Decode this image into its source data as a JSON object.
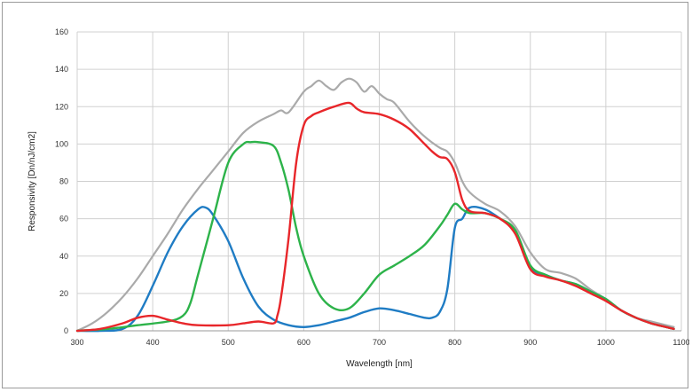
{
  "chart_data": {
    "type": "line",
    "title": "",
    "xlabel": "Wavelength [nm]",
    "ylabel": "Responsivity [Dn/nJ/cm2]",
    "xlim": [
      300,
      1100
    ],
    "ylim": [
      0,
      160
    ],
    "xticks": [
      300,
      400,
      500,
      600,
      700,
      800,
      900,
      1000,
      1100
    ],
    "yticks": [
      0,
      20,
      40,
      60,
      80,
      100,
      120,
      140,
      160
    ],
    "grid": true,
    "legend": "none",
    "series": [
      {
        "color": "#aaaaaa",
        "x": [
          300,
          320,
          340,
          360,
          380,
          400,
          420,
          440,
          460,
          480,
          500,
          520,
          540,
          560,
          570,
          580,
          600,
          610,
          620,
          630,
          640,
          650,
          660,
          670,
          680,
          690,
          700,
          710,
          720,
          740,
          760,
          780,
          790,
          800,
          810,
          820,
          840,
          860,
          880,
          900,
          920,
          940,
          960,
          980,
          1000,
          1020,
          1040,
          1060,
          1080,
          1090
        ],
        "values": [
          0,
          4,
          10,
          18,
          28,
          40,
          52,
          65,
          76,
          86,
          96,
          106,
          112,
          116,
          118,
          117,
          128,
          131,
          134,
          131,
          129,
          133,
          135,
          133,
          128,
          131,
          127,
          124,
          122,
          112,
          104,
          98,
          96,
          90,
          80,
          74,
          68,
          64,
          56,
          42,
          33,
          31,
          28,
          22,
          17,
          11,
          7,
          5,
          3,
          2
        ]
      },
      {
        "color": "#1f7cc4",
        "x": [
          300,
          330,
          360,
          380,
          400,
          420,
          440,
          460,
          470,
          480,
          500,
          520,
          540,
          560,
          580,
          600,
          620,
          640,
          660,
          680,
          700,
          720,
          740,
          760,
          770,
          780,
          790,
          800,
          810,
          820,
          840,
          860,
          880,
          900,
          920,
          940,
          960,
          980,
          1000,
          1020,
          1040,
          1060,
          1080,
          1090
        ],
        "values": [
          0,
          0,
          1,
          8,
          24,
          42,
          56,
          65,
          66,
          62,
          48,
          28,
          13,
          6,
          3,
          2,
          3,
          5,
          7,
          10,
          12,
          11,
          9,
          7,
          7,
          10,
          22,
          55,
          60,
          66,
          65,
          60,
          53,
          34,
          30,
          27,
          25,
          21,
          17,
          11,
          7,
          4,
          2,
          1
        ]
      },
      {
        "color": "#2db34a",
        "x": [
          300,
          340,
          380,
          420,
          440,
          450,
          460,
          480,
          500,
          520,
          530,
          540,
          560,
          570,
          580,
          590,
          600,
          620,
          640,
          660,
          680,
          700,
          720,
          740,
          760,
          780,
          790,
          800,
          810,
          820,
          840,
          860,
          880,
          900,
          920,
          940,
          960,
          980,
          1000,
          1020,
          1040,
          1060,
          1080,
          1090
        ],
        "values": [
          0,
          1,
          3,
          5,
          8,
          15,
          30,
          60,
          90,
          100,
          101,
          101,
          99,
          90,
          75,
          55,
          40,
          20,
          12,
          12,
          20,
          30,
          35,
          40,
          46,
          56,
          62,
          68,
          65,
          63,
          63,
          60,
          54,
          35,
          30,
          27,
          25,
          21,
          17,
          11,
          7,
          4,
          2,
          1
        ]
      },
      {
        "color": "#e8262a",
        "x": [
          300,
          330,
          360,
          380,
          400,
          420,
          440,
          460,
          500,
          520,
          540,
          560,
          565,
          570,
          580,
          590,
          600,
          610,
          620,
          640,
          660,
          670,
          680,
          700,
          720,
          740,
          760,
          770,
          780,
          790,
          800,
          810,
          820,
          840,
          860,
          880,
          900,
          920,
          940,
          960,
          980,
          1000,
          1020,
          1040,
          1060,
          1080,
          1090
        ],
        "values": [
          0,
          1,
          4,
          7,
          8,
          6,
          4,
          3,
          3,
          4,
          5,
          4,
          8,
          18,
          50,
          90,
          110,
          115,
          117,
          120,
          122,
          119,
          117,
          116,
          113,
          108,
          100,
          96,
          93,
          92,
          85,
          70,
          64,
          63,
          60,
          52,
          33,
          29,
          27,
          24,
          20,
          16,
          11,
          7,
          4,
          2,
          1
        ]
      }
    ]
  }
}
